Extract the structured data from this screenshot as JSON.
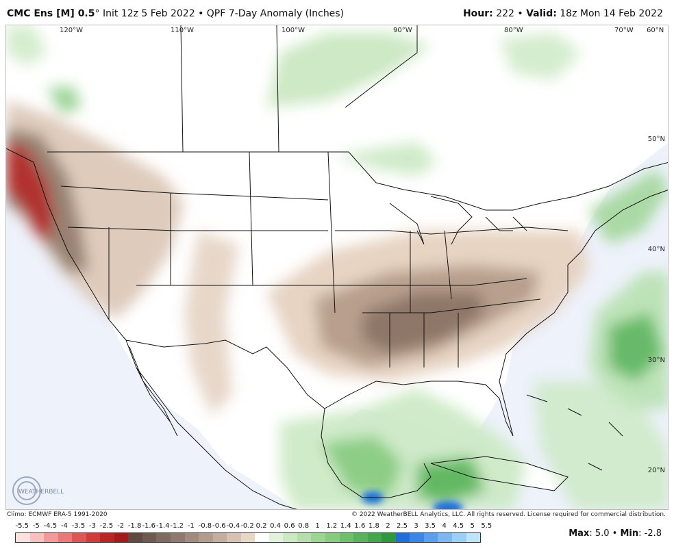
{
  "header": {
    "model": "CMC Ens [M] 0.5",
    "degree": "°",
    "init": " Init 12z 5 Feb 2022 • QPF 7-Day Anomaly (Inches)",
    "hour_label": "Hour:",
    "hour_value": " 222 • ",
    "valid_label": "Valid:",
    "valid_value": " 18z Mon 14 Feb 2022"
  },
  "map": {
    "lon_labels": [
      "120°W",
      "110°W",
      "100°W",
      "90°W",
      "80°W",
      "70°W",
      "60°N"
    ],
    "lat_labels": [
      "50°N",
      "40°N",
      "30°N",
      "20°N"
    ],
    "land_color": "#ffffff",
    "ocean_color": "#eef2fb"
  },
  "footer": {
    "climo": "Climo: ECMWF ERA-5 1991-2020",
    "copyright": "© 2022 WeatherBELL Analytics, LLC. All rights reserved. License required for commercial distribution.",
    "logo_text": "WEATHERBELL"
  },
  "scale": {
    "ticks": [
      "-5.5",
      "-5",
      "-4.5",
      "-4",
      "-3.5",
      "-3",
      "-2.5",
      "-2",
      "-1.8",
      "-1.6",
      "-1.4",
      "-1.2",
      "-1",
      "-0.8",
      "-0.6",
      "-0.4",
      "-0.2",
      "0.2",
      "0.4",
      "0.6",
      "0.8",
      "1",
      "1.2",
      "1.4",
      "1.6",
      "1.8",
      "2",
      "2.5",
      "3",
      "3.5",
      "4",
      "4.5",
      "5",
      "5.5"
    ],
    "colors": [
      "#fde0e0",
      "#f9c0c0",
      "#f29a9a",
      "#ea7a7a",
      "#de5656",
      "#cf3a3a",
      "#bb2424",
      "#a21a1a",
      "#5e4a40",
      "#6e5a50",
      "#7e6a5f",
      "#8e7a6e",
      "#a08b7e",
      "#b29c8e",
      "#c4ae9f",
      "#d6c2b2",
      "#e8d6c6",
      "#ffffff",
      "#e2f2dc",
      "#cbe9c3",
      "#b4dfac",
      "#9dd595",
      "#86cb80",
      "#6fc06c",
      "#58b45a",
      "#43a64a",
      "#2f983c",
      "#1f6fd8",
      "#3a86e6",
      "#5a9fee",
      "#7bb8f3",
      "#9ccff6",
      "#bde4fa"
    ],
    "max_label": "Max",
    "max_value": ": 5.0 • ",
    "min_label": "Min",
    "min_value": ": -2.8"
  }
}
